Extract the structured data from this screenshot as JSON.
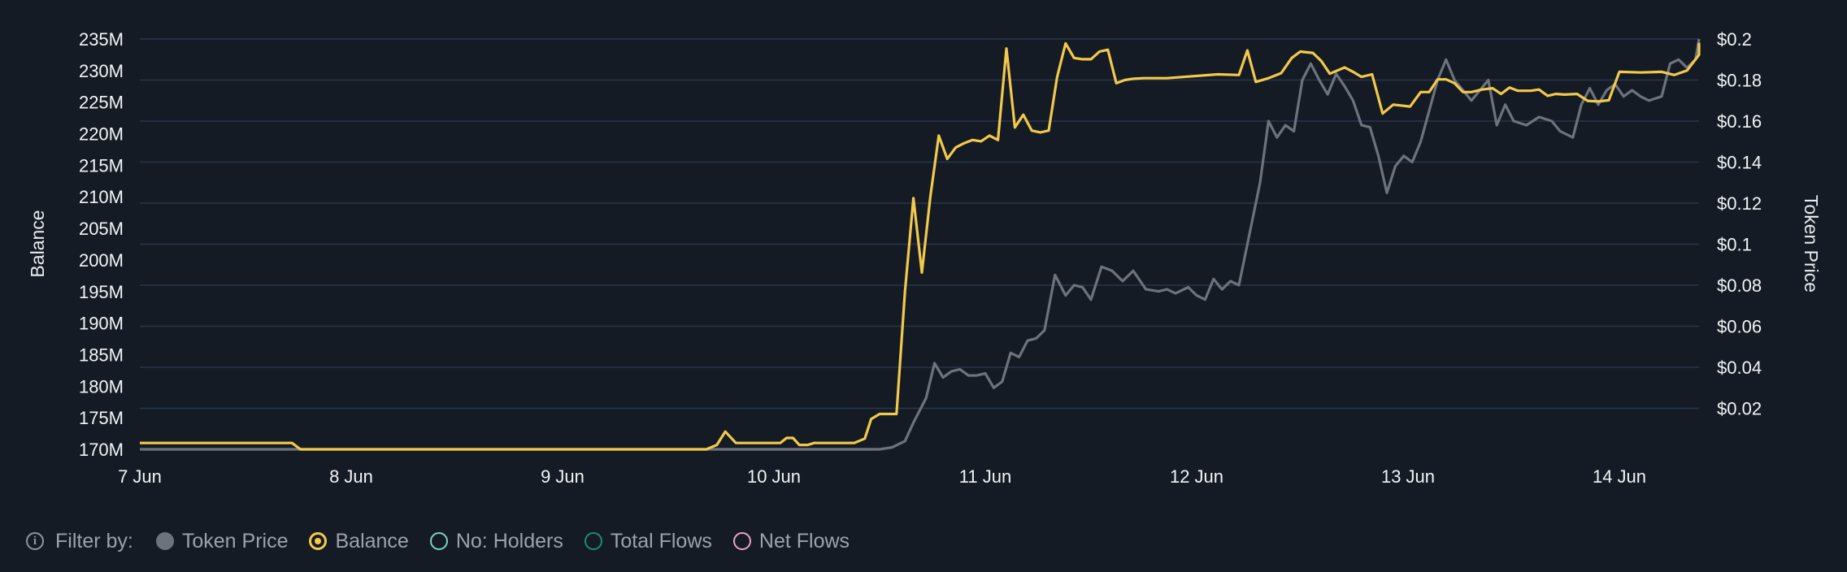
{
  "chart_data": {
    "type": "line",
    "y_left_label": "Balance",
    "y_right_label": "Token Price",
    "y_left_ticks": [
      "235M",
      "230M",
      "225M",
      "220M",
      "215M",
      "210M",
      "205M",
      "200M",
      "195M",
      "190M",
      "185M",
      "180M",
      "175M",
      "170M"
    ],
    "y_left_tick_values": [
      235,
      230,
      225,
      220,
      215,
      210,
      205,
      200,
      195,
      190,
      185,
      180,
      175,
      170
    ],
    "y_left_range": [
      170,
      235
    ],
    "y_right_ticks": [
      "$0.2",
      "$0.18",
      "$0.16",
      "$0.14",
      "$0.12",
      "$0.1",
      "$0.08",
      "$0.06",
      "$0.04",
      "$0.02"
    ],
    "y_right_tick_values": [
      0.2,
      0.18,
      0.16,
      0.14,
      0.12,
      0.1,
      0.08,
      0.06,
      0.04,
      0.02
    ],
    "y_right_range": [
      0,
      0.2
    ],
    "x_ticks": [
      "7 Jun",
      "8 Jun",
      "9 Jun",
      "10 Jun",
      "11 Jun",
      "12 Jun",
      "13 Jun",
      "14 Jun"
    ],
    "x_tick_values": [
      0,
      1,
      2,
      3,
      4,
      5,
      6,
      7
    ],
    "x_range": [
      0,
      7.4
    ],
    "grid": true,
    "series": [
      {
        "name": "Balance",
        "axis": "left",
        "color": "#f2c94c",
        "points": [
          [
            0,
            171
          ],
          [
            0.72,
            171
          ],
          [
            0.76,
            170
          ],
          [
            2.68,
            170
          ],
          [
            2.73,
            170.7
          ],
          [
            2.77,
            172.8
          ],
          [
            2.82,
            171
          ],
          [
            3.03,
            171
          ],
          [
            3.06,
            171.8
          ],
          [
            3.09,
            171.8
          ],
          [
            3.12,
            170.7
          ],
          [
            3.16,
            170.7
          ],
          [
            3.19,
            171
          ],
          [
            3.38,
            171
          ],
          [
            3.43,
            171.7
          ],
          [
            3.46,
            174.8
          ],
          [
            3.5,
            175.6
          ],
          [
            3.58,
            175.6
          ],
          [
            3.62,
            195
          ],
          [
            3.66,
            209.8
          ],
          [
            3.7,
            198
          ],
          [
            3.74,
            210
          ],
          [
            3.78,
            219.7
          ],
          [
            3.82,
            216
          ],
          [
            3.86,
            217.8
          ],
          [
            3.9,
            218.5
          ],
          [
            3.94,
            219
          ],
          [
            3.98,
            218.8
          ],
          [
            4.02,
            219.7
          ],
          [
            4.06,
            219
          ],
          [
            4.1,
            233.5
          ],
          [
            4.14,
            221
          ],
          [
            4.18,
            223
          ],
          [
            4.22,
            220.5
          ],
          [
            4.26,
            220.2
          ],
          [
            4.3,
            220.5
          ],
          [
            4.34,
            229
          ],
          [
            4.38,
            234.3
          ],
          [
            4.42,
            232
          ],
          [
            4.46,
            231.8
          ],
          [
            4.5,
            231.8
          ],
          [
            4.54,
            233
          ],
          [
            4.58,
            233.3
          ],
          [
            4.62,
            228
          ],
          [
            4.66,
            228.5
          ],
          [
            4.7,
            228.7
          ],
          [
            4.75,
            228.8
          ],
          [
            4.8,
            228.8
          ],
          [
            4.86,
            228.8
          ],
          [
            5.1,
            229.4
          ],
          [
            5.2,
            229.3
          ],
          [
            5.24,
            233.2
          ],
          [
            5.28,
            228.2
          ],
          [
            5.34,
            228.8
          ],
          [
            5.4,
            229.6
          ],
          [
            5.45,
            232
          ],
          [
            5.49,
            233
          ],
          [
            5.55,
            232.8
          ],
          [
            5.59,
            231.5
          ],
          [
            5.63,
            229.5
          ],
          [
            5.7,
            230.5
          ],
          [
            5.74,
            229.8
          ],
          [
            5.78,
            229
          ],
          [
            5.83,
            229.4
          ],
          [
            5.88,
            223.2
          ],
          [
            5.93,
            224.6
          ],
          [
            6.01,
            224.3
          ],
          [
            6.06,
            226.6
          ],
          [
            6.1,
            226.6
          ],
          [
            6.14,
            228.6
          ],
          [
            6.18,
            228.6
          ],
          [
            6.22,
            228
          ],
          [
            6.26,
            226.6
          ],
          [
            6.3,
            226.6
          ],
          [
            6.35,
            227
          ],
          [
            6.4,
            227.2
          ],
          [
            6.44,
            226.3
          ],
          [
            6.48,
            227.3
          ],
          [
            6.52,
            226.8
          ],
          [
            6.58,
            226.8
          ],
          [
            6.62,
            227
          ],
          [
            6.66,
            226
          ],
          [
            6.7,
            226.3
          ],
          [
            6.74,
            226.2
          ],
          [
            6.8,
            226.3
          ],
          [
            6.85,
            225.2
          ],
          [
            6.9,
            225.1
          ],
          [
            6.95,
            225.3
          ],
          [
            7,
            229.8
          ],
          [
            7.1,
            229.7
          ],
          [
            7.2,
            229.8
          ],
          [
            7.26,
            229.3
          ],
          [
            7.32,
            230
          ],
          [
            7.38,
            232.5
          ],
          [
            7.44,
            233.8
          ],
          [
            7.48,
            233.9
          ],
          [
            7.52,
            234.4
          ]
        ]
      },
      {
        "name": "Token Price",
        "axis": "right",
        "color": "#6c737d",
        "points": [
          [
            0,
            0
          ],
          [
            3.5,
            0
          ],
          [
            3.56,
            0.001
          ],
          [
            3.62,
            0.004
          ],
          [
            3.66,
            0.013
          ],
          [
            3.72,
            0.025
          ],
          [
            3.76,
            0.042
          ],
          [
            3.8,
            0.035
          ],
          [
            3.84,
            0.038
          ],
          [
            3.88,
            0.039
          ],
          [
            3.92,
            0.036
          ],
          [
            3.96,
            0.036
          ],
          [
            4.0,
            0.037
          ],
          [
            4.04,
            0.03
          ],
          [
            4.08,
            0.033
          ],
          [
            4.12,
            0.047
          ],
          [
            4.16,
            0.045
          ],
          [
            4.2,
            0.053
          ],
          [
            4.24,
            0.054
          ],
          [
            4.28,
            0.058
          ],
          [
            4.33,
            0.085
          ],
          [
            4.38,
            0.075
          ],
          [
            4.42,
            0.08
          ],
          [
            4.46,
            0.079
          ],
          [
            4.5,
            0.073
          ],
          [
            4.55,
            0.089
          ],
          [
            4.6,
            0.087
          ],
          [
            4.65,
            0.082
          ],
          [
            4.7,
            0.087
          ],
          [
            4.76,
            0.078
          ],
          [
            4.82,
            0.077
          ],
          [
            4.86,
            0.078
          ],
          [
            4.9,
            0.076
          ],
          [
            4.96,
            0.079
          ],
          [
            5.0,
            0.075
          ],
          [
            5.04,
            0.073
          ],
          [
            5.08,
            0.083
          ],
          [
            5.12,
            0.078
          ],
          [
            5.16,
            0.082
          ],
          [
            5.2,
            0.08
          ],
          [
            5.26,
            0.11
          ],
          [
            5.3,
            0.13
          ],
          [
            5.34,
            0.16
          ],
          [
            5.38,
            0.152
          ],
          [
            5.42,
            0.158
          ],
          [
            5.46,
            0.155
          ],
          [
            5.5,
            0.18
          ],
          [
            5.54,
            0.188
          ],
          [
            5.58,
            0.18
          ],
          [
            5.62,
            0.173
          ],
          [
            5.66,
            0.183
          ],
          [
            5.7,
            0.177
          ],
          [
            5.74,
            0.17
          ],
          [
            5.78,
            0.158
          ],
          [
            5.82,
            0.157
          ],
          [
            5.86,
            0.143
          ],
          [
            5.9,
            0.125
          ],
          [
            5.94,
            0.138
          ],
          [
            5.98,
            0.143
          ],
          [
            6.02,
            0.14
          ],
          [
            6.06,
            0.15
          ],
          [
            6.1,
            0.165
          ],
          [
            6.14,
            0.18
          ],
          [
            6.18,
            0.19
          ],
          [
            6.22,
            0.18
          ],
          [
            6.26,
            0.175
          ],
          [
            6.3,
            0.17
          ],
          [
            6.34,
            0.175
          ],
          [
            6.38,
            0.18
          ],
          [
            6.42,
            0.158
          ],
          [
            6.46,
            0.168
          ],
          [
            6.5,
            0.16
          ],
          [
            6.56,
            0.158
          ],
          [
            6.62,
            0.162
          ],
          [
            6.68,
            0.16
          ],
          [
            6.72,
            0.155
          ],
          [
            6.78,
            0.152
          ],
          [
            6.82,
            0.168
          ],
          [
            6.86,
            0.176
          ],
          [
            6.9,
            0.168
          ],
          [
            6.94,
            0.175
          ],
          [
            6.98,
            0.178
          ],
          [
            7.02,
            0.172
          ],
          [
            7.06,
            0.175
          ],
          [
            7.1,
            0.172
          ],
          [
            7.14,
            0.17
          ],
          [
            7.2,
            0.172
          ],
          [
            7.24,
            0.188
          ],
          [
            7.28,
            0.19
          ],
          [
            7.32,
            0.186
          ],
          [
            7.36,
            0.19
          ],
          [
            7.4,
            0.2
          ]
        ]
      }
    ]
  },
  "legend": {
    "filter_label": "Filter by:",
    "items": [
      {
        "label": "Token Price",
        "color": "#6c737d",
        "style": "filled"
      },
      {
        "label": "Balance",
        "color": "#f2c94c",
        "style": "selected"
      },
      {
        "label": "No: Holders",
        "color": "#7fd1c8",
        "style": "ring"
      },
      {
        "label": "Total Flows",
        "color": "#1e8a7a",
        "style": "ring"
      },
      {
        "label": "Net Flows",
        "color": "#e9a6c4",
        "style": "ring"
      }
    ]
  }
}
